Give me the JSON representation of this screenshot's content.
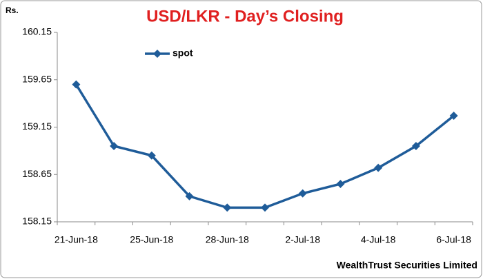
{
  "chart_data": {
    "type": "line",
    "title": "USD/LKR - Day’s Closing",
    "y_label": "Rs.",
    "source": "WealthTrust Securities Limited",
    "categories": [
      "21-Jun-18",
      null,
      "25-Jun-18",
      null,
      "28-Jun-18",
      null,
      "2-Jul-18",
      null,
      "4-Jul-18",
      null,
      "6-Jul-18"
    ],
    "series": [
      {
        "name": "spot",
        "color": "#1f5c99",
        "values": [
          159.6,
          158.95,
          158.85,
          158.42,
          158.3,
          158.3,
          158.45,
          158.55,
          158.72,
          158.95,
          159.27
        ]
      }
    ],
    "ylim": [
      158.15,
      160.15
    ],
    "yticks": [
      158.15,
      158.65,
      159.15,
      159.65,
      160.15
    ],
    "legend": "upper left"
  }
}
